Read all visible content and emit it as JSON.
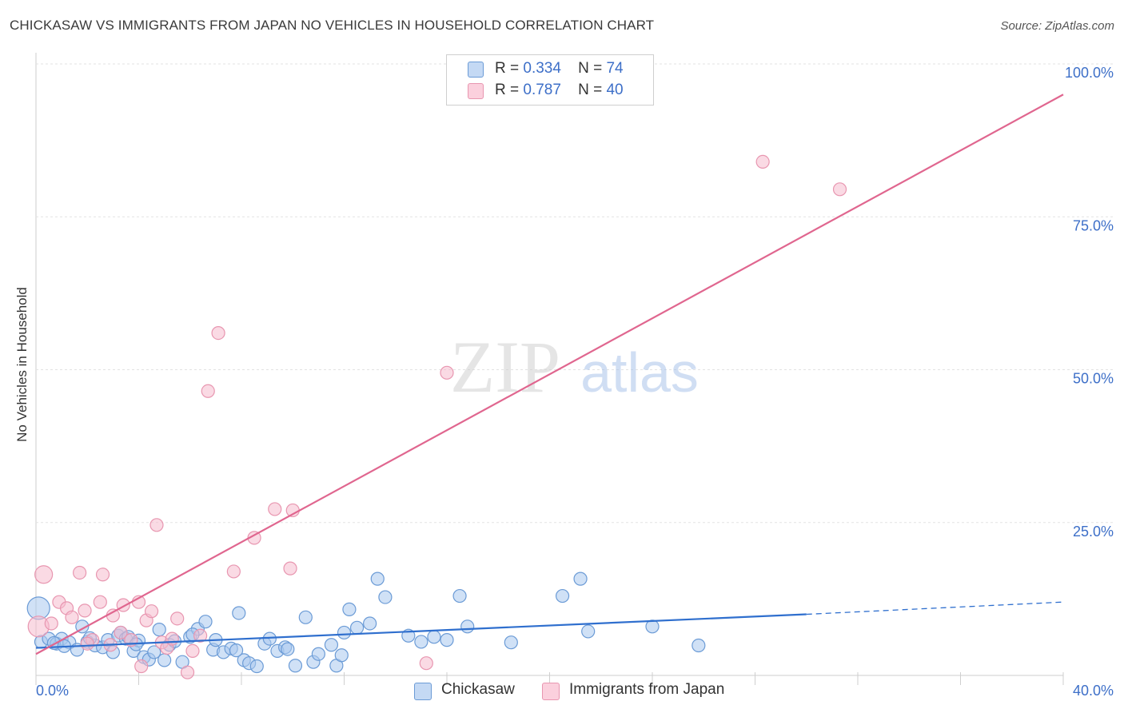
{
  "title": "CHICKASAW VS IMMIGRANTS FROM JAPAN NO VEHICLES IN HOUSEHOLD CORRELATION CHART",
  "source": "Source: ZipAtlas.com",
  "watermark": {
    "zip": "ZIP",
    "atlas": "atlas"
  },
  "legend": {
    "r_label": "R =",
    "n_label": "N =",
    "series": [
      {
        "name": "Chickasaw",
        "r": "0.334",
        "n": "74"
      },
      {
        "name": "Immigrants from Japan",
        "r": "0.787",
        "n": "40"
      }
    ]
  },
  "chart_data": {
    "type": "scatter",
    "title": "CHICKASAW VS IMMIGRANTS FROM JAPAN NO VEHICLES IN HOUSEHOLD CORRELATION CHART",
    "xlabel": "",
    "ylabel": "No Vehicles in Household",
    "xlim": [
      0,
      40
    ],
    "ylim": [
      0,
      100
    ],
    "x_tick_labels": [
      {
        "value": 0,
        "label": "0.0%"
      },
      {
        "value": 40,
        "label": "40.0%"
      }
    ],
    "y_tick_labels": [
      {
        "value": 25,
        "label": "25.0%"
      },
      {
        "value": 50,
        "label": "50.0%"
      },
      {
        "value": 75,
        "label": "75.0%"
      },
      {
        "value": 100,
        "label": "100.0%"
      }
    ],
    "grid": true,
    "legend_position": "top-center",
    "colors": {
      "chickasaw_fill": "#a9c8ef",
      "chickasaw_stroke": "#6b9bd6",
      "chickasaw_line": "#2f6fce",
      "japan_fill": "#f6bccd",
      "japan_stroke": "#e896b0",
      "japan_line": "#e0668f",
      "tick_label": "#3d6fc8",
      "grid": "#e3e3e3"
    },
    "series": [
      {
        "name": "Chickasaw",
        "trend": {
          "x0": 0,
          "y0": 4.5,
          "x1": 30,
          "y1": 10.0,
          "dash_x1": 40,
          "dash_y1": 12.0
        },
        "points": [
          {
            "x": 0.1,
            "y": 11.0,
            "r": 14
          },
          {
            "x": 0.2,
            "y": 5.5
          },
          {
            "x": 0.5,
            "y": 6.0
          },
          {
            "x": 0.8,
            "y": 5.2
          },
          {
            "x": 1.0,
            "y": 6.0
          },
          {
            "x": 1.3,
            "y": 5.4
          },
          {
            "x": 1.6,
            "y": 4.2
          },
          {
            "x": 1.8,
            "y": 8.0
          },
          {
            "x": 2.0,
            "y": 5.5
          },
          {
            "x": 2.3,
            "y": 4.9
          },
          {
            "x": 2.6,
            "y": 4.6
          },
          {
            "x": 2.8,
            "y": 5.8
          },
          {
            "x": 3.0,
            "y": 3.8
          },
          {
            "x": 3.2,
            "y": 6.5
          },
          {
            "x": 3.3,
            "y": 7.0
          },
          {
            "x": 3.5,
            "y": 6.0
          },
          {
            "x": 3.6,
            "y": 6.3
          },
          {
            "x": 3.8,
            "y": 4.0
          },
          {
            "x": 4.0,
            "y": 5.7
          },
          {
            "x": 4.2,
            "y": 3.0
          },
          {
            "x": 4.4,
            "y": 2.6
          },
          {
            "x": 4.6,
            "y": 3.8
          },
          {
            "x": 4.8,
            "y": 7.5
          },
          {
            "x": 5.0,
            "y": 2.5
          },
          {
            "x": 5.2,
            "y": 5.0
          },
          {
            "x": 5.4,
            "y": 5.6
          },
          {
            "x": 5.7,
            "y": 2.2
          },
          {
            "x": 6.0,
            "y": 6.3
          },
          {
            "x": 6.3,
            "y": 7.6
          },
          {
            "x": 6.6,
            "y": 8.8
          },
          {
            "x": 6.9,
            "y": 4.2
          },
          {
            "x": 7.0,
            "y": 5.8
          },
          {
            "x": 7.3,
            "y": 3.8
          },
          {
            "x": 7.6,
            "y": 4.4
          },
          {
            "x": 7.9,
            "y": 10.2
          },
          {
            "x": 8.1,
            "y": 2.5
          },
          {
            "x": 8.3,
            "y": 2.0
          },
          {
            "x": 8.6,
            "y": 1.5
          },
          {
            "x": 8.9,
            "y": 5.2
          },
          {
            "x": 9.1,
            "y": 6.0
          },
          {
            "x": 9.4,
            "y": 4.0
          },
          {
            "x": 9.7,
            "y": 4.6
          },
          {
            "x": 10.1,
            "y": 1.6
          },
          {
            "x": 10.5,
            "y": 9.5
          },
          {
            "x": 10.8,
            "y": 2.2
          },
          {
            "x": 11.0,
            "y": 3.5
          },
          {
            "x": 11.5,
            "y": 5.0
          },
          {
            "x": 11.7,
            "y": 1.6
          },
          {
            "x": 12.0,
            "y": 7.0
          },
          {
            "x": 12.2,
            "y": 10.8
          },
          {
            "x": 12.5,
            "y": 7.8
          },
          {
            "x": 13.0,
            "y": 8.5
          },
          {
            "x": 13.3,
            "y": 15.8
          },
          {
            "x": 13.6,
            "y": 12.8
          },
          {
            "x": 14.5,
            "y": 6.5
          },
          {
            "x": 15.0,
            "y": 5.5
          },
          {
            "x": 15.5,
            "y": 6.3
          },
          {
            "x": 16.0,
            "y": 5.8
          },
          {
            "x": 16.5,
            "y": 13.0
          },
          {
            "x": 16.8,
            "y": 8.0
          },
          {
            "x": 18.5,
            "y": 5.4
          },
          {
            "x": 20.5,
            "y": 13.0
          },
          {
            "x": 21.2,
            "y": 15.8
          },
          {
            "x": 21.5,
            "y": 7.2
          },
          {
            "x": 24.0,
            "y": 8.0
          },
          {
            "x": 25.8,
            "y": 4.9
          },
          {
            "x": 0.7,
            "y": 5.3
          },
          {
            "x": 1.1,
            "y": 4.8
          },
          {
            "x": 2.1,
            "y": 6.1
          },
          {
            "x": 3.9,
            "y": 5.1
          },
          {
            "x": 6.1,
            "y": 6.7
          },
          {
            "x": 7.8,
            "y": 4.1
          },
          {
            "x": 9.8,
            "y": 4.3
          },
          {
            "x": 11.9,
            "y": 3.3
          }
        ]
      },
      {
        "name": "Immigrants from Japan",
        "trend": {
          "x0": 0,
          "y0": 3.5,
          "x1": 40,
          "y1": 95.0
        },
        "points": [
          {
            "x": 0.1,
            "y": 8.0,
            "r": 13
          },
          {
            "x": 0.3,
            "y": 16.5,
            "r": 11
          },
          {
            "x": 0.6,
            "y": 8.5
          },
          {
            "x": 0.9,
            "y": 12.0
          },
          {
            "x": 1.2,
            "y": 11.0
          },
          {
            "x": 1.4,
            "y": 9.5
          },
          {
            "x": 1.7,
            "y": 16.8
          },
          {
            "x": 1.9,
            "y": 10.6
          },
          {
            "x": 2.2,
            "y": 5.8
          },
          {
            "x": 2.5,
            "y": 12.0
          },
          {
            "x": 2.6,
            "y": 16.5
          },
          {
            "x": 2.9,
            "y": 5.0
          },
          {
            "x": 3.0,
            "y": 9.8
          },
          {
            "x": 3.3,
            "y": 7.0
          },
          {
            "x": 3.4,
            "y": 11.5
          },
          {
            "x": 3.7,
            "y": 5.8
          },
          {
            "x": 4.0,
            "y": 12.0
          },
          {
            "x": 4.1,
            "y": 1.5
          },
          {
            "x": 4.3,
            "y": 9.0
          },
          {
            "x": 4.5,
            "y": 10.5
          },
          {
            "x": 4.7,
            "y": 24.6
          },
          {
            "x": 4.9,
            "y": 5.4
          },
          {
            "x": 5.1,
            "y": 4.5
          },
          {
            "x": 5.3,
            "y": 6.0
          },
          {
            "x": 5.5,
            "y": 9.3
          },
          {
            "x": 5.9,
            "y": 0.5
          },
          {
            "x": 6.1,
            "y": 4.0
          },
          {
            "x": 6.4,
            "y": 6.5
          },
          {
            "x": 6.7,
            "y": 46.5
          },
          {
            "x": 7.1,
            "y": 56.0
          },
          {
            "x": 7.7,
            "y": 17.0
          },
          {
            "x": 8.5,
            "y": 22.5
          },
          {
            "x": 9.3,
            "y": 27.2
          },
          {
            "x": 9.9,
            "y": 17.5
          },
          {
            "x": 10.0,
            "y": 27.0
          },
          {
            "x": 15.2,
            "y": 2.0
          },
          {
            "x": 16.0,
            "y": 49.5
          },
          {
            "x": 28.3,
            "y": 84.0
          },
          {
            "x": 31.3,
            "y": 79.5
          },
          {
            "x": 2.0,
            "y": 5.2
          }
        ]
      }
    ]
  }
}
